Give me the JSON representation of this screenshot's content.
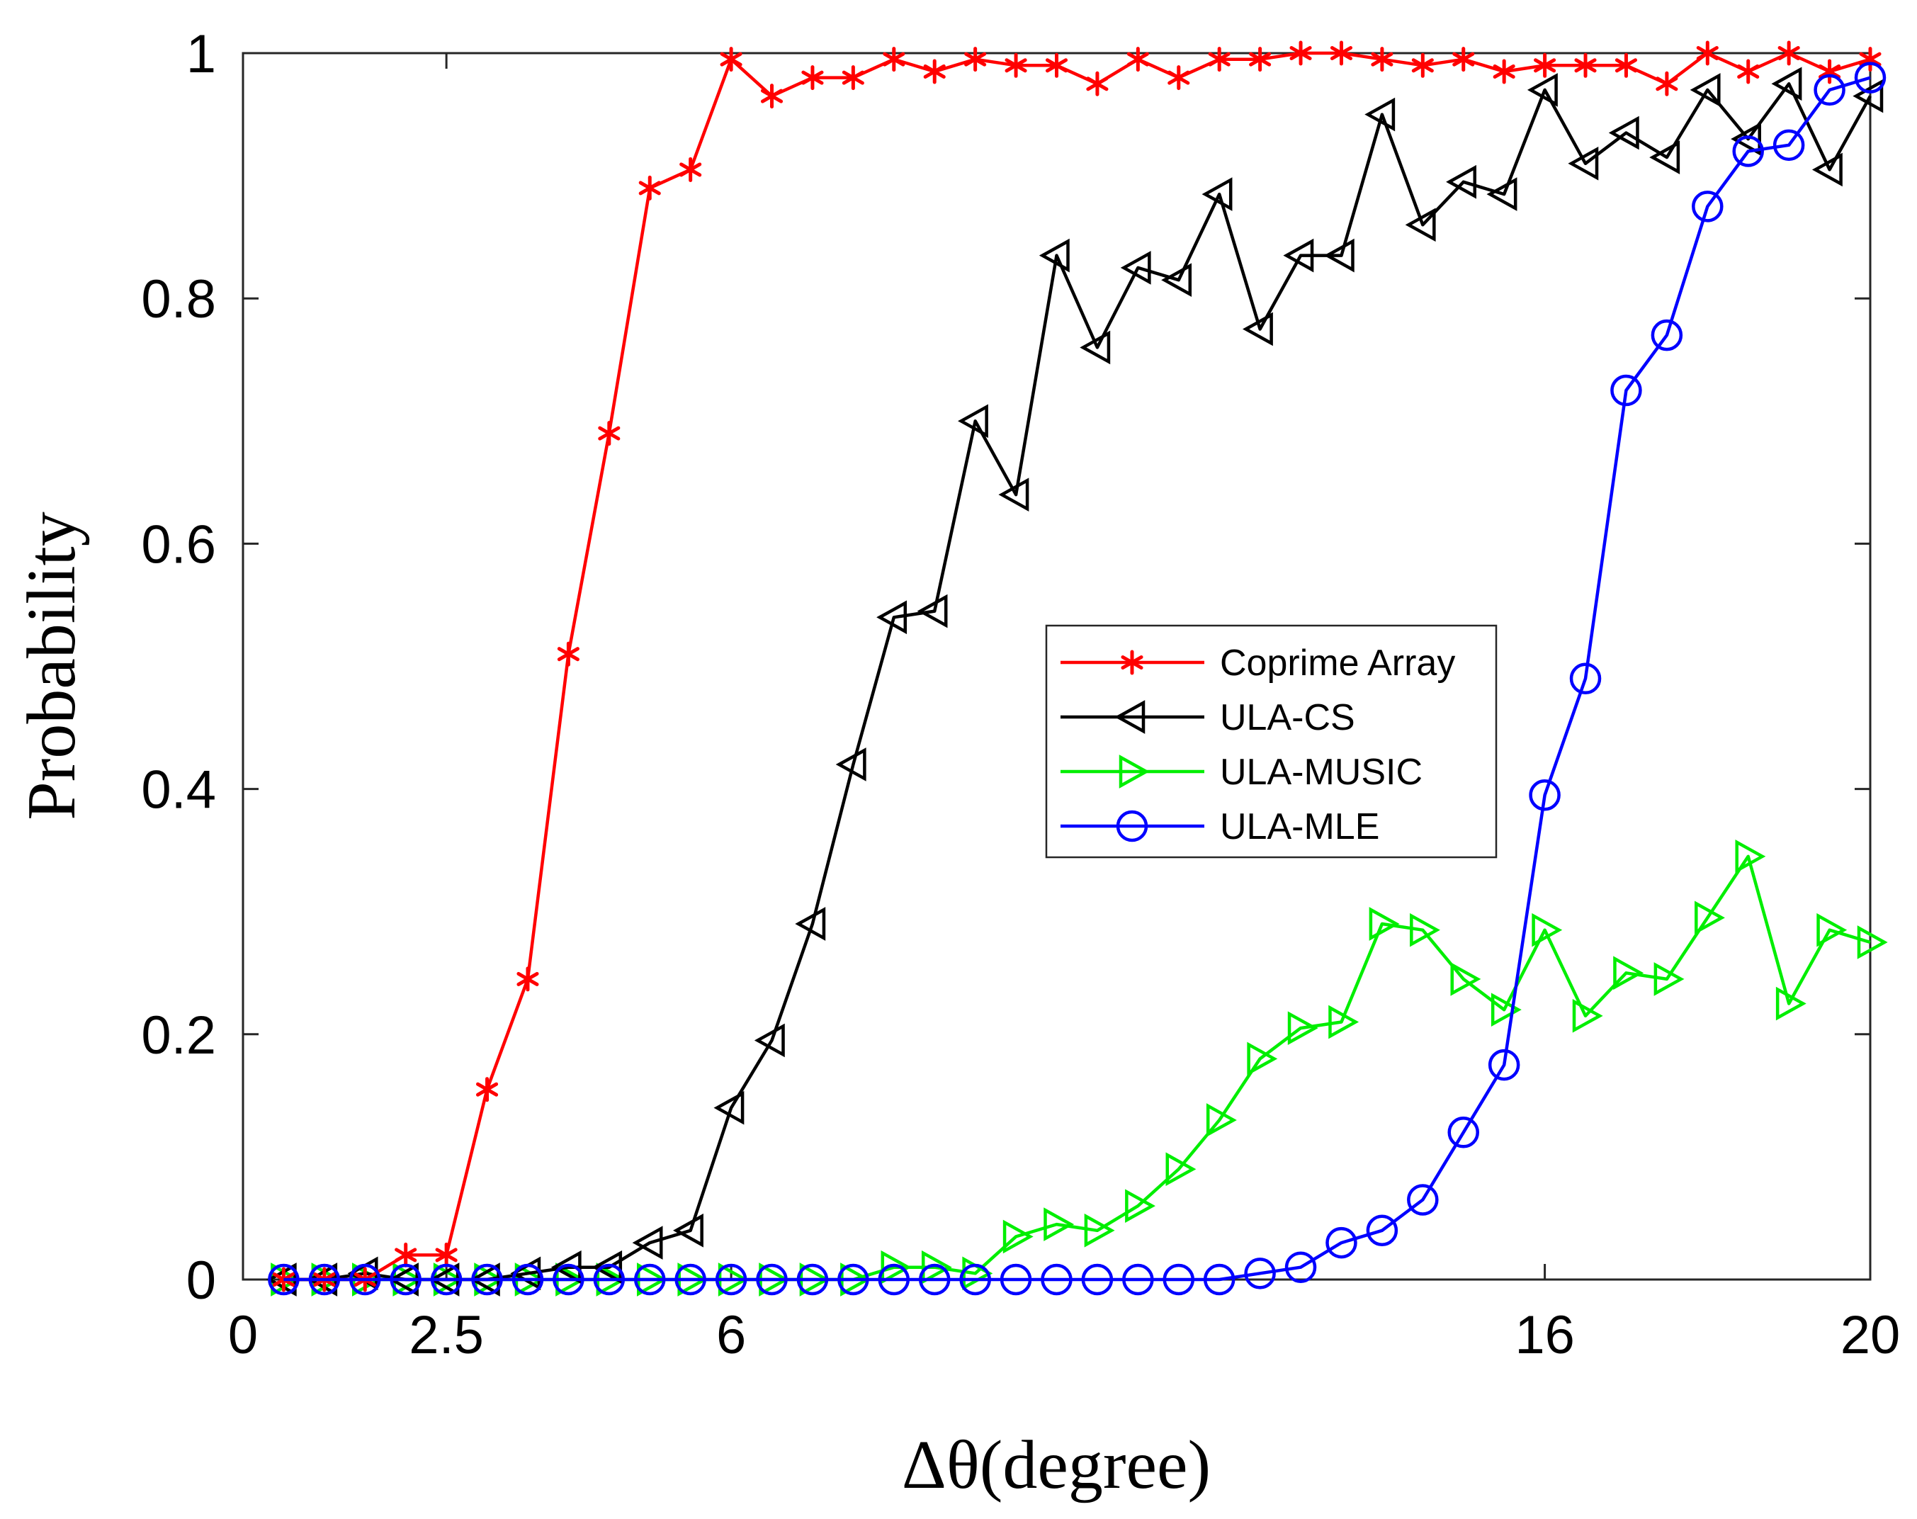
{
  "chart_data": {
    "type": "line",
    "title": "",
    "xlabel": "Δθ(degree)",
    "ylabel": "Probability",
    "xlim": [
      0,
      20
    ],
    "ylim": [
      0,
      1
    ],
    "xticks": [
      0,
      2.5,
      6,
      16,
      20
    ],
    "xtick_labels": [
      "0",
      "2.5",
      "6",
      "16",
      "20"
    ],
    "yticks": [
      0,
      0.2,
      0.4,
      0.6,
      0.8,
      1
    ],
    "ytick_labels": [
      "0",
      "0.2",
      "0.4",
      "0.6",
      "0.8",
      "1"
    ],
    "grid": false,
    "legend_position": "center-right",
    "x": [
      0.5,
      1,
      1.5,
      2,
      2.5,
      3,
      3.5,
      4,
      4.5,
      5,
      5.5,
      6,
      6.5,
      7,
      7.5,
      8,
      8.5,
      9,
      9.5,
      10,
      10.5,
      11,
      11.5,
      12,
      12.5,
      13,
      13.5,
      14,
      14.5,
      15,
      15.5,
      16,
      16.5,
      17,
      17.5,
      18,
      18.5,
      19,
      19.5,
      20
    ],
    "series": [
      {
        "name": "Coprime Array",
        "color": "#ff0000",
        "marker": "asterisk",
        "values": [
          0,
          0,
          0,
          0.02,
          0.02,
          0.155,
          0.245,
          0.51,
          0.69,
          0.89,
          0.905,
          0.995,
          0.965,
          0.98,
          0.98,
          0.995,
          0.985,
          0.995,
          0.99,
          0.99,
          0.975,
          0.995,
          0.98,
          0.995,
          0.995,
          1.0,
          1.0,
          0.995,
          0.99,
          0.995,
          0.985,
          0.99,
          0.99,
          0.99,
          0.975,
          1.0,
          0.985,
          1.0,
          0.985,
          0.995
        ]
      },
      {
        "name": "ULA-CS",
        "color": "#000000",
        "marker": "triangle-left",
        "values": [
          0,
          0,
          0.005,
          0,
          0,
          0,
          0.005,
          0.01,
          0.01,
          0.03,
          0.04,
          0.14,
          0.195,
          0.29,
          0.42,
          0.54,
          0.545,
          0.7,
          0.64,
          0.835,
          0.76,
          0.825,
          0.815,
          0.885,
          0.775,
          0.835,
          0.835,
          0.95,
          0.86,
          0.895,
          0.885,
          0.97,
          0.91,
          0.935,
          0.915,
          0.97,
          0.93,
          0.975,
          0.905,
          0.965
        ]
      },
      {
        "name": "ULA-MUSIC",
        "color": "#00ee00",
        "marker": "triangle-right",
        "values": [
          0,
          0,
          0,
          0,
          0,
          0,
          0,
          0,
          0,
          0,
          0,
          0,
          0,
          0,
          0,
          0.01,
          0.01,
          0.005,
          0.035,
          0.045,
          0.04,
          0.06,
          0.09,
          0.13,
          0.18,
          0.205,
          0.21,
          0.29,
          0.285,
          0.245,
          0.22,
          0.285,
          0.215,
          0.25,
          0.245,
          0.295,
          0.345,
          0.225,
          0.285,
          0.275
        ]
      },
      {
        "name": "ULA-MLE",
        "color": "#0000ff",
        "marker": "circle",
        "values": [
          0,
          0,
          0,
          0,
          0,
          0,
          0,
          0,
          0,
          0,
          0,
          0,
          0,
          0,
          0,
          0,
          0,
          0,
          0,
          0,
          0,
          0,
          0,
          0,
          0.005,
          0.01,
          0.03,
          0.04,
          0.065,
          0.12,
          0.175,
          0.395,
          0.49,
          0.725,
          0.77,
          0.875,
          0.92,
          0.925,
          0.97,
          0.98
        ]
      }
    ]
  }
}
